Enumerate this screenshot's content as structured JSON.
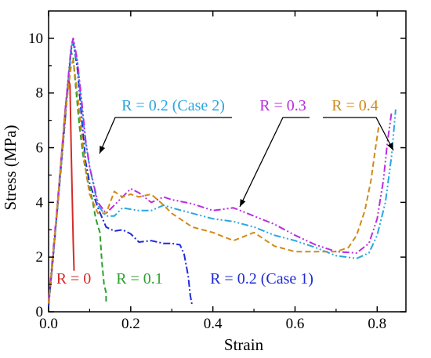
{
  "chart_data": {
    "type": "line",
    "xlabel": "Strain",
    "ylabel": "Stress (MPa)",
    "xlim": [
      0.0,
      0.87
    ],
    "ylim": [
      0,
      11
    ],
    "xticks": [
      "0.0",
      "0.2",
      "0.4",
      "0.6",
      "0.8"
    ],
    "yticks": [
      "0",
      "2",
      "4",
      "6",
      "8",
      "10"
    ],
    "grid": false,
    "series": [
      {
        "name": "R = 0",
        "color": "#d62a2a",
        "dash": "solid",
        "x": [
          0.0,
          0.01,
          0.02,
          0.03,
          0.04,
          0.048,
          0.052,
          0.055,
          0.06,
          0.062
        ],
        "y": [
          0.3,
          1.8,
          3.6,
          5.4,
          7.3,
          8.5,
          8.3,
          6.0,
          2.6,
          1.5
        ]
      },
      {
        "name": "R = 0.1",
        "color": "#2ca02c",
        "dash": "dash",
        "x": [
          0.0,
          0.02,
          0.04,
          0.05,
          0.055,
          0.06,
          0.065,
          0.075,
          0.085,
          0.095,
          0.105,
          0.115,
          0.125,
          0.13,
          0.135,
          0.14,
          0.14
        ],
        "y": [
          0.3,
          3.5,
          7.0,
          8.8,
          9.5,
          9.3,
          8.4,
          6.8,
          5.6,
          4.8,
          4.2,
          3.4,
          2.9,
          1.8,
          1.0,
          0.7,
          0.3
        ]
      },
      {
        "name": "R = 0.2 (Case 1)",
        "color": "#1f2bd6",
        "dash": "dashdot",
        "x": [
          0.0,
          0.02,
          0.04,
          0.055,
          0.06,
          0.07,
          0.08,
          0.09,
          0.1,
          0.12,
          0.14,
          0.16,
          0.18,
          0.2,
          0.22,
          0.25,
          0.28,
          0.3,
          0.32,
          0.33,
          0.34,
          0.345,
          0.35
        ],
        "y": [
          0.2,
          3.5,
          7.0,
          9.6,
          9.9,
          8.9,
          7.2,
          5.5,
          4.7,
          3.8,
          3.1,
          2.95,
          3.0,
          2.85,
          2.55,
          2.6,
          2.5,
          2.5,
          2.45,
          2.1,
          1.3,
          0.6,
          0.2
        ]
      },
      {
        "name": "R = 0.2 (Case 2)",
        "color": "#2aa6e0",
        "dash": "dashdotdot",
        "x": [
          0.0,
          0.02,
          0.04,
          0.055,
          0.06,
          0.07,
          0.08,
          0.09,
          0.1,
          0.12,
          0.14,
          0.16,
          0.18,
          0.2,
          0.22,
          0.25,
          0.28,
          0.3,
          0.35,
          0.4,
          0.45,
          0.5,
          0.55,
          0.6,
          0.65,
          0.7,
          0.75,
          0.78,
          0.8,
          0.82,
          0.835,
          0.845
        ],
        "y": [
          0.3,
          3.5,
          7.2,
          9.6,
          9.9,
          9.1,
          7.6,
          6.2,
          5.3,
          3.9,
          3.5,
          3.5,
          3.8,
          3.75,
          3.7,
          3.7,
          3.9,
          3.8,
          3.6,
          3.4,
          3.3,
          3.1,
          2.8,
          2.6,
          2.35,
          2.05,
          1.95,
          2.15,
          2.8,
          4.0,
          5.7,
          7.4
        ]
      },
      {
        "name": "R = 0.3",
        "color": "#b82ee0",
        "dash": "dashdotdot",
        "x": [
          0.0,
          0.02,
          0.04,
          0.055,
          0.06,
          0.07,
          0.08,
          0.09,
          0.1,
          0.12,
          0.14,
          0.16,
          0.18,
          0.2,
          0.22,
          0.25,
          0.28,
          0.3,
          0.35,
          0.4,
          0.45,
          0.5,
          0.55,
          0.6,
          0.65,
          0.7,
          0.75,
          0.78,
          0.8,
          0.815,
          0.825,
          0.835
        ],
        "y": [
          0.4,
          3.7,
          7.3,
          9.7,
          10.0,
          9.2,
          7.8,
          6.3,
          5.3,
          4.0,
          3.6,
          3.9,
          4.2,
          4.5,
          4.35,
          4.0,
          4.2,
          4.1,
          3.95,
          3.7,
          3.8,
          3.5,
          3.2,
          2.8,
          2.45,
          2.2,
          2.15,
          2.5,
          3.4,
          4.8,
          6.2,
          7.3
        ]
      },
      {
        "name": "R = 0.4",
        "color": "#d08a1a",
        "dash": "dash",
        "x": [
          0.0,
          0.02,
          0.04,
          0.055,
          0.06,
          0.07,
          0.08,
          0.09,
          0.1,
          0.12,
          0.14,
          0.16,
          0.18,
          0.2,
          0.22,
          0.25,
          0.28,
          0.3,
          0.35,
          0.4,
          0.45,
          0.5,
          0.55,
          0.6,
          0.65,
          0.7,
          0.73,
          0.75,
          0.77,
          0.785,
          0.795,
          0.805
        ],
        "y": [
          0.3,
          3.6,
          7.2,
          9.0,
          9.2,
          8.0,
          6.6,
          5.2,
          4.3,
          3.6,
          3.6,
          4.4,
          4.2,
          4.3,
          4.2,
          4.3,
          3.9,
          3.6,
          3.1,
          2.9,
          2.6,
          2.9,
          2.4,
          2.2,
          2.2,
          2.2,
          2.35,
          2.8,
          3.7,
          4.8,
          5.9,
          6.9
        ]
      }
    ],
    "annotations": [
      {
        "text": "R = 0",
        "color": "#d62a2a"
      },
      {
        "text": "R = 0.1",
        "color": "#2ca02c"
      },
      {
        "text": "R = 0.2 (Case 1)",
        "color": "#1f2bd6"
      },
      {
        "text": "R = 0.2 (Case 2)",
        "color": "#2aa6e0"
      },
      {
        "text": "R = 0.3",
        "color": "#b82ee0"
      },
      {
        "text": "R = 0.4",
        "color": "#d08a1a"
      }
    ]
  }
}
